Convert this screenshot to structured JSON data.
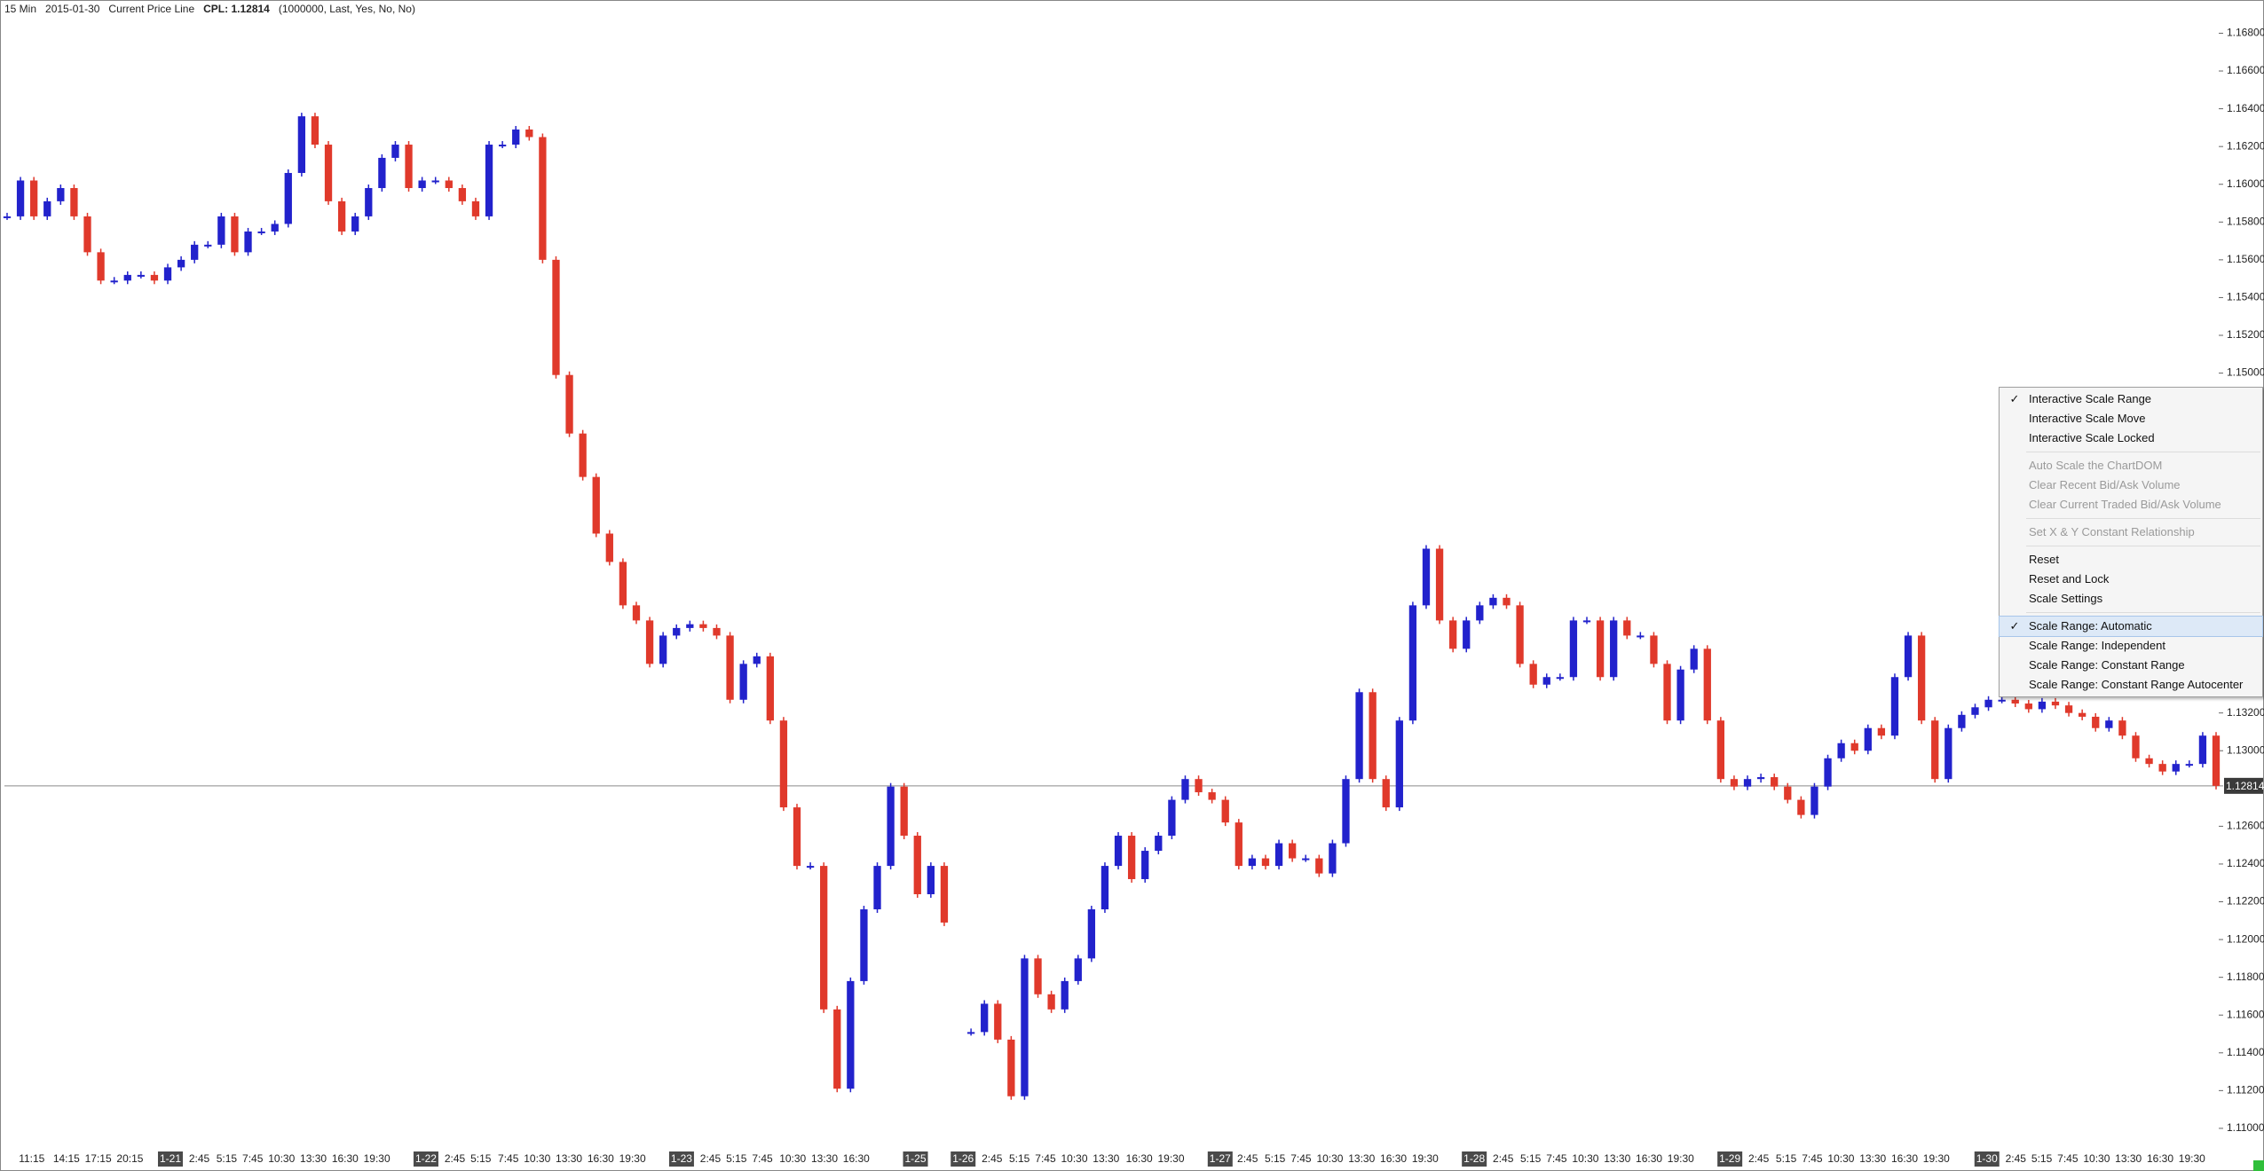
{
  "header": {
    "interval": "15 Min",
    "date": "2015-01-30",
    "study": "Current Price Line",
    "cpl": "CPL: 1.12814",
    "params": "(1000000, Last, Yes, No, No)"
  },
  "chart_data": {
    "type": "candlestick",
    "values": [
      1.1583,
      1.1602,
      1.1583,
      1.1591,
      1.1598,
      1.1583,
      1.1564,
      1.1549,
      1.1549,
      1.1552,
      1.1552,
      1.1549,
      1.1556,
      1.156,
      1.1568,
      1.1568,
      1.1583,
      1.1564,
      1.1575,
      1.1575,
      1.1579,
      1.1606,
      1.1636,
      1.1621,
      1.1591,
      1.1575,
      1.1583,
      1.1598,
      1.1614,
      1.1621,
      1.1598,
      1.1602,
      1.1602,
      1.1598,
      1.1591,
      1.1583,
      1.1621,
      1.1621,
      1.1629,
      1.1625,
      1.156,
      1.1499,
      1.1468,
      1.1445,
      1.1415,
      1.14,
      1.1377,
      1.1369,
      1.1346,
      1.1361,
      1.1365,
      1.1367,
      1.1365,
      1.1361,
      1.1327,
      1.1346,
      1.135,
      1.1316,
      1.127,
      1.1239,
      1.1239,
      1.1163,
      1.1121,
      1.1178,
      1.1216,
      1.1239,
      1.1281,
      1.1255,
      1.1224,
      1.1239,
      1.1209,
      null,
      1.1151,
      1.1166,
      1.1147,
      1.1117,
      1.119,
      1.1171,
      1.1163,
      1.1178,
      1.119,
      1.1216,
      1.1239,
      1.1255,
      1.1232,
      1.1247,
      1.1255,
      1.1274,
      1.1285,
      1.1278,
      1.1274,
      1.1262,
      1.1239,
      1.1243,
      1.1239,
      1.1251,
      1.1243,
      1.1243,
      1.1235,
      1.1251,
      1.1285,
      1.1331,
      1.1285,
      1.127,
      1.1316,
      1.1377,
      1.1407,
      1.1369,
      1.1354,
      1.1369,
      1.1377,
      1.1381,
      1.1377,
      1.1346,
      1.1335,
      1.1339,
      1.1339,
      1.1369,
      1.1369,
      1.1339,
      1.1369,
      1.1361,
      1.1361,
      1.1346,
      1.1316,
      1.1343,
      1.1354,
      1.1316,
      1.1285,
      1.1281,
      1.1285,
      1.1286,
      1.1281,
      1.1274,
      1.1266,
      1.1281,
      1.1296,
      1.1304,
      1.13,
      1.1312,
      1.1308,
      1.1339,
      1.1361,
      1.1316,
      1.1285,
      1.1312,
      1.1319,
      1.1323,
      1.1327,
      1.1327,
      1.1325,
      1.1322,
      1.1326,
      1.1324,
      1.132,
      1.1318,
      1.1312,
      1.1316,
      1.1308,
      1.1296,
      1.1293,
      1.1289,
      1.1293,
      1.1293,
      1.1308,
      1.12814
    ],
    "up_color": "#2222cc",
    "down_color": "#e0392b",
    "ylim": [
      1.10901,
      1.16976
    ],
    "yticks": [
      {
        "value": 1.168,
        "label": "1.16800"
      },
      {
        "value": 1.166,
        "label": "1.16600"
      },
      {
        "value": 1.164,
        "label": "1.16400"
      },
      {
        "value": 1.162,
        "label": "1.16200"
      },
      {
        "value": 1.16,
        "label": "1.16000"
      },
      {
        "value": 1.158,
        "label": "1.15800"
      },
      {
        "value": 1.156,
        "label": "1.15600"
      },
      {
        "value": 1.154,
        "label": "1.15400"
      },
      {
        "value": 1.152,
        "label": "1.15200"
      },
      {
        "value": 1.15,
        "label": "1.15000"
      },
      {
        "value": 1.132,
        "label": "1.13200"
      },
      {
        "value": 1.13,
        "label": "1.13000"
      },
      {
        "value": 1.126,
        "label": "1.12600"
      },
      {
        "value": 1.124,
        "label": "1.12400"
      },
      {
        "value": 1.122,
        "label": "1.12200"
      },
      {
        "value": 1.12,
        "label": "1.12000"
      },
      {
        "value": 1.118,
        "label": "1.11800"
      },
      {
        "value": 1.116,
        "label": "1.11600"
      },
      {
        "value": 1.114,
        "label": "1.11400"
      },
      {
        "value": 1.112,
        "label": "1.11200"
      },
      {
        "value": 1.11,
        "label": "1.11000"
      }
    ],
    "current_price": {
      "value": 1.12814,
      "label": "1.12814"
    },
    "x_labels": [
      "11:15",
      "14:15",
      "17:15",
      "20:15",
      "1-21",
      "2:45",
      "5:15",
      "7:45",
      "10:30",
      "13:30",
      "16:30",
      "19:30",
      "1-22",
      "2:45",
      "5:15",
      "7:45",
      "10:30",
      "13:30",
      "16:30",
      "19:30",
      "1-23",
      "2:45",
      "5:15",
      "7:45",
      "10:30",
      "13:30",
      "16:30",
      "1-25",
      "1-26",
      "2:45",
      "5:15",
      "7:45",
      "10:30",
      "13:30",
      "16:30",
      "19:30",
      "1-27",
      "2:45",
      "5:15",
      "7:45",
      "10:30",
      "13:30",
      "16:30",
      "19:30",
      "1-28",
      "2:45",
      "5:15",
      "7:45",
      "10:30",
      "13:30",
      "16:30",
      "19:30",
      "1-29",
      "2:45",
      "5:15",
      "7:45",
      "10:30",
      "13:30",
      "16:30",
      "19:30",
      "1-30",
      "2:45",
      "5:15",
      "7:45",
      "10:30",
      "13:30",
      "16:30",
      "19:30"
    ]
  },
  "context_menu": {
    "groups": [
      [
        {
          "label": "Interactive Scale Range",
          "checked": true
        },
        {
          "label": "Interactive Scale Move"
        },
        {
          "label": "Interactive Scale Locked"
        }
      ],
      [
        {
          "label": "Auto Scale the ChartDOM",
          "disabled": true
        },
        {
          "label": "Clear Recent Bid/Ask Volume",
          "disabled": true
        },
        {
          "label": "Clear Current Traded Bid/Ask Volume",
          "disabled": true
        }
      ],
      [
        {
          "label": "Set X & Y Constant Relationship",
          "disabled": true
        }
      ],
      [
        {
          "label": "Reset"
        },
        {
          "label": "Reset and Lock"
        },
        {
          "label": "Scale Settings"
        }
      ],
      [
        {
          "label": "Scale Range: Automatic",
          "checked": true,
          "highlighted": true
        },
        {
          "label": "Scale Range: Independent"
        },
        {
          "label": "Scale Range: Constant Range"
        },
        {
          "label": "Scale Range: Constant Range Autocenter"
        }
      ]
    ]
  }
}
